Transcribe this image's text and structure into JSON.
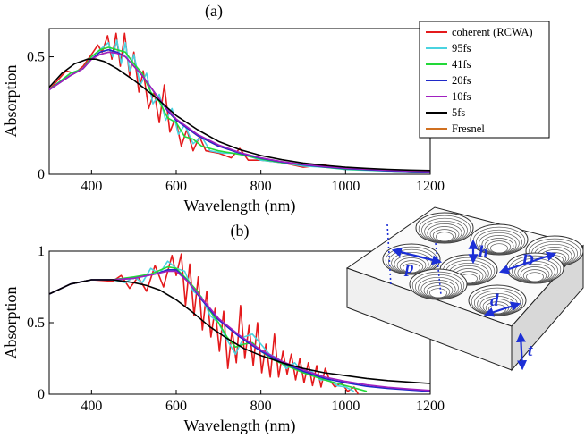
{
  "figure": {
    "panel_a_label": "(a)",
    "panel_b_label": "(b)"
  },
  "legend": [
    {
      "label": "coherent (RCWA)",
      "color": "#e41a1c"
    },
    {
      "label": "95fs",
      "color": "#4ad3e0"
    },
    {
      "label": "41fs",
      "color": "#22d838"
    },
    {
      "label": "20fs",
      "color": "#1f29c8"
    },
    {
      "label": "10fs",
      "color": "#a020c0"
    },
    {
      "label": "5fs",
      "color": "#000000"
    },
    {
      "label": "Fresnel",
      "color": "#d07020"
    }
  ],
  "schematic": {
    "labels": [
      "p",
      "h",
      "D",
      "d",
      "t"
    ],
    "arrow_color": "#1c2fd6"
  },
  "chart_data": [
    {
      "type": "line",
      "panel": "(a)",
      "xlabel": "Wavelength (nm)",
      "ylabel": "Absorption",
      "xlim": [
        300,
        1200
      ],
      "ylim": [
        0,
        0.62
      ],
      "xticks": [
        400,
        600,
        800,
        1000,
        1200
      ],
      "yticks": [
        0,
        0.5
      ],
      "ytick_labels": [
        "0",
        "0.5"
      ],
      "legend_position": "top-right",
      "series": [
        {
          "name": "Fresnel",
          "color": "#d07020",
          "x": [
            300,
            350,
            380,
            400,
            420,
            440,
            460,
            480,
            500,
            520,
            540,
            560,
            580,
            600,
            650,
            700,
            750,
            800,
            850,
            900,
            950,
            1000,
            1050,
            1100,
            1150,
            1200
          ],
          "y": [
            0.36,
            0.42,
            0.45,
            0.49,
            0.51,
            0.52,
            0.52,
            0.5,
            0.46,
            0.42,
            0.37,
            0.32,
            0.27,
            0.23,
            0.165,
            0.12,
            0.09,
            0.068,
            0.052,
            0.04,
            0.031,
            0.024,
            0.019,
            0.015,
            0.012,
            0.01
          ]
        },
        {
          "name": "coherent (RCWA)",
          "color": "#e41a1c",
          "x": [
            300,
            340,
            360,
            380,
            400,
            415,
            425,
            438,
            448,
            458,
            468,
            478,
            490,
            500,
            512,
            522,
            535,
            548,
            560,
            572,
            585,
            598,
            612,
            625,
            640,
            655,
            670,
            700,
            730,
            750,
            770,
            800,
            850,
            900,
            950,
            1000,
            1050,
            1100,
            1150,
            1200
          ],
          "y": [
            0.36,
            0.44,
            0.43,
            0.46,
            0.51,
            0.55,
            0.52,
            0.59,
            0.49,
            0.6,
            0.46,
            0.6,
            0.42,
            0.52,
            0.35,
            0.44,
            0.28,
            0.35,
            0.22,
            0.38,
            0.18,
            0.24,
            0.12,
            0.19,
            0.1,
            0.16,
            0.1,
            0.09,
            0.07,
            0.11,
            0.06,
            0.06,
            0.05,
            0.03,
            0.04,
            0.02,
            0.02,
            0.015,
            0.012,
            0.01
          ]
        },
        {
          "name": "95fs",
          "color": "#4ad3e0",
          "x": [
            300,
            350,
            380,
            400,
            420,
            440,
            450,
            460,
            470,
            480,
            490,
            500,
            515,
            530,
            545,
            560,
            575,
            590,
            605,
            620,
            640,
            660,
            680,
            710,
            750,
            800,
            850,
            900,
            950,
            1000,
            1100,
            1200
          ],
          "y": [
            0.36,
            0.43,
            0.45,
            0.5,
            0.53,
            0.56,
            0.5,
            0.57,
            0.47,
            0.56,
            0.44,
            0.51,
            0.38,
            0.43,
            0.3,
            0.34,
            0.23,
            0.28,
            0.17,
            0.21,
            0.13,
            0.16,
            0.1,
            0.09,
            0.09,
            0.06,
            0.05,
            0.035,
            0.03,
            0.02,
            0.014,
            0.01
          ]
        },
        {
          "name": "41fs",
          "color": "#22d838",
          "x": [
            300,
            350,
            380,
            400,
            420,
            440,
            460,
            480,
            500,
            520,
            540,
            560,
            580,
            600,
            620,
            640,
            660,
            680,
            700,
            750,
            800,
            850,
            900,
            950,
            1000,
            1100,
            1200
          ],
          "y": [
            0.36,
            0.43,
            0.45,
            0.5,
            0.53,
            0.54,
            0.53,
            0.52,
            0.47,
            0.43,
            0.35,
            0.31,
            0.24,
            0.22,
            0.16,
            0.15,
            0.12,
            0.11,
            0.1,
            0.085,
            0.065,
            0.05,
            0.04,
            0.03,
            0.022,
            0.015,
            0.01
          ]
        },
        {
          "name": "20fs",
          "color": "#1f29c8",
          "x": [
            300,
            350,
            380,
            400,
            420,
            440,
            460,
            480,
            500,
            520,
            540,
            560,
            580,
            600,
            650,
            700,
            750,
            800,
            850,
            900,
            950,
            1000,
            1100,
            1200
          ],
          "y": [
            0.36,
            0.42,
            0.45,
            0.49,
            0.52,
            0.53,
            0.52,
            0.5,
            0.46,
            0.42,
            0.37,
            0.32,
            0.27,
            0.23,
            0.165,
            0.12,
            0.09,
            0.068,
            0.052,
            0.04,
            0.031,
            0.024,
            0.015,
            0.01
          ]
        },
        {
          "name": "10fs",
          "color": "#a020c0",
          "x": [
            300,
            350,
            380,
            400,
            420,
            440,
            460,
            480,
            500,
            520,
            540,
            560,
            580,
            600,
            650,
            700,
            750,
            800,
            850,
            900,
            950,
            1000,
            1100,
            1200
          ],
          "y": [
            0.36,
            0.42,
            0.45,
            0.49,
            0.51,
            0.52,
            0.515,
            0.5,
            0.46,
            0.42,
            0.37,
            0.32,
            0.275,
            0.235,
            0.17,
            0.125,
            0.093,
            0.07,
            0.054,
            0.042,
            0.033,
            0.026,
            0.017,
            0.012
          ]
        },
        {
          "name": "5fs",
          "color": "#000000",
          "x": [
            300,
            330,
            360,
            390,
            410,
            430,
            460,
            500,
            550,
            600,
            650,
            700,
            750,
            800,
            850,
            900,
            950,
            1000,
            1050,
            1100,
            1150,
            1200
          ],
          "y": [
            0.37,
            0.43,
            0.47,
            0.49,
            0.49,
            0.48,
            0.45,
            0.4,
            0.33,
            0.25,
            0.19,
            0.14,
            0.105,
            0.08,
            0.062,
            0.048,
            0.038,
            0.03,
            0.025,
            0.021,
            0.018,
            0.016
          ]
        }
      ]
    },
    {
      "type": "line",
      "panel": "(b)",
      "xlabel": "Wavelength (nm)",
      "ylabel": "Absorption",
      "xlim": [
        300,
        1200
      ],
      "ylim": [
        0,
        1.0
      ],
      "xticks": [
        400,
        600,
        800,
        1000,
        1200
      ],
      "yticks": [
        0,
        0.5,
        1
      ],
      "ytick_labels": [
        "0",
        "0.5",
        "1"
      ],
      "series": [
        {
          "name": "coherent (RCWA)",
          "color": "#e41a1c",
          "x": [
            300,
            350,
            400,
            450,
            470,
            490,
            510,
            530,
            550,
            570,
            590,
            600,
            612,
            622,
            632,
            642,
            652,
            662,
            672,
            682,
            692,
            702,
            712,
            722,
            732,
            742,
            752,
            762,
            772,
            782,
            792,
            802,
            812,
            822,
            832,
            842,
            852,
            862,
            872,
            882,
            892,
            902,
            912,
            922,
            932,
            942,
            952,
            962,
            975,
            990,
            1005,
            1020,
            1030
          ],
          "y": [
            0.7,
            0.77,
            0.8,
            0.79,
            0.83,
            0.74,
            0.82,
            0.72,
            0.9,
            0.75,
            0.97,
            0.83,
            0.98,
            0.62,
            0.91,
            0.55,
            0.82,
            0.45,
            0.72,
            0.4,
            0.6,
            0.3,
            0.58,
            0.18,
            0.45,
            0.22,
            0.62,
            0.25,
            0.48,
            0.2,
            0.5,
            0.15,
            0.35,
            0.12,
            0.42,
            0.12,
            0.3,
            0.14,
            0.28,
            0.1,
            0.25,
            0.08,
            0.22,
            0.06,
            0.2,
            0.05,
            0.18,
            0.1,
            0.05,
            0.08,
            0.02,
            0.05,
            0.0
          ]
        },
        {
          "name": "95fs",
          "color": "#4ad3e0",
          "x": [
            300,
            350,
            400,
            450,
            480,
            500,
            520,
            540,
            560,
            580,
            600,
            620,
            640,
            660,
            680,
            700,
            720,
            740,
            760,
            780,
            800,
            820,
            840,
            860,
            880,
            900,
            920,
            940,
            960,
            980,
            1000,
            1020
          ],
          "y": [
            0.7,
            0.77,
            0.8,
            0.8,
            0.78,
            0.82,
            0.78,
            0.88,
            0.84,
            0.93,
            0.88,
            0.86,
            0.72,
            0.68,
            0.55,
            0.5,
            0.38,
            0.28,
            0.4,
            0.42,
            0.35,
            0.28,
            0.25,
            0.18,
            0.22,
            0.15,
            0.16,
            0.1,
            0.1,
            0.06,
            0.05,
            0.02
          ]
        },
        {
          "name": "41fs",
          "color": "#22d838",
          "x": [
            300,
            350,
            400,
            450,
            500,
            540,
            580,
            600,
            620,
            650,
            680,
            700,
            720,
            740,
            760,
            780,
            800,
            830,
            860,
            900,
            950,
            1000,
            1050
          ],
          "y": [
            0.7,
            0.77,
            0.8,
            0.8,
            0.82,
            0.84,
            0.89,
            0.88,
            0.82,
            0.72,
            0.58,
            0.5,
            0.4,
            0.33,
            0.35,
            0.36,
            0.3,
            0.24,
            0.2,
            0.15,
            0.1,
            0.06,
            0.02
          ]
        },
        {
          "name": "20fs",
          "color": "#1f29c8",
          "x": [
            300,
            350,
            400,
            450,
            500,
            550,
            580,
            600,
            630,
            660,
            700,
            750,
            800,
            850,
            900,
            950,
            1000,
            1050,
            1100,
            1150,
            1200
          ],
          "y": [
            0.7,
            0.77,
            0.8,
            0.8,
            0.81,
            0.84,
            0.87,
            0.87,
            0.78,
            0.66,
            0.52,
            0.4,
            0.3,
            0.22,
            0.16,
            0.11,
            0.08,
            0.055,
            0.04,
            0.03,
            0.02
          ]
        },
        {
          "name": "10fs",
          "color": "#a020c0",
          "x": [
            300,
            350,
            400,
            450,
            500,
            550,
            580,
            600,
            630,
            660,
            700,
            750,
            800,
            850,
            900,
            950,
            1000,
            1050,
            1100,
            1150,
            1200
          ],
          "y": [
            0.7,
            0.77,
            0.8,
            0.8,
            0.81,
            0.84,
            0.86,
            0.86,
            0.78,
            0.67,
            0.53,
            0.41,
            0.31,
            0.23,
            0.17,
            0.12,
            0.09,
            0.065,
            0.048,
            0.036,
            0.026
          ]
        },
        {
          "name": "5fs",
          "color": "#000000",
          "x": [
            300,
            350,
            400,
            450,
            500,
            530,
            560,
            600,
            640,
            680,
            720,
            760,
            800,
            850,
            900,
            950,
            1000,
            1050,
            1100,
            1150,
            1200
          ],
          "y": [
            0.7,
            0.77,
            0.8,
            0.8,
            0.78,
            0.76,
            0.73,
            0.66,
            0.57,
            0.47,
            0.39,
            0.32,
            0.27,
            0.22,
            0.18,
            0.15,
            0.13,
            0.11,
            0.095,
            0.085,
            0.075
          ]
        }
      ]
    }
  ]
}
